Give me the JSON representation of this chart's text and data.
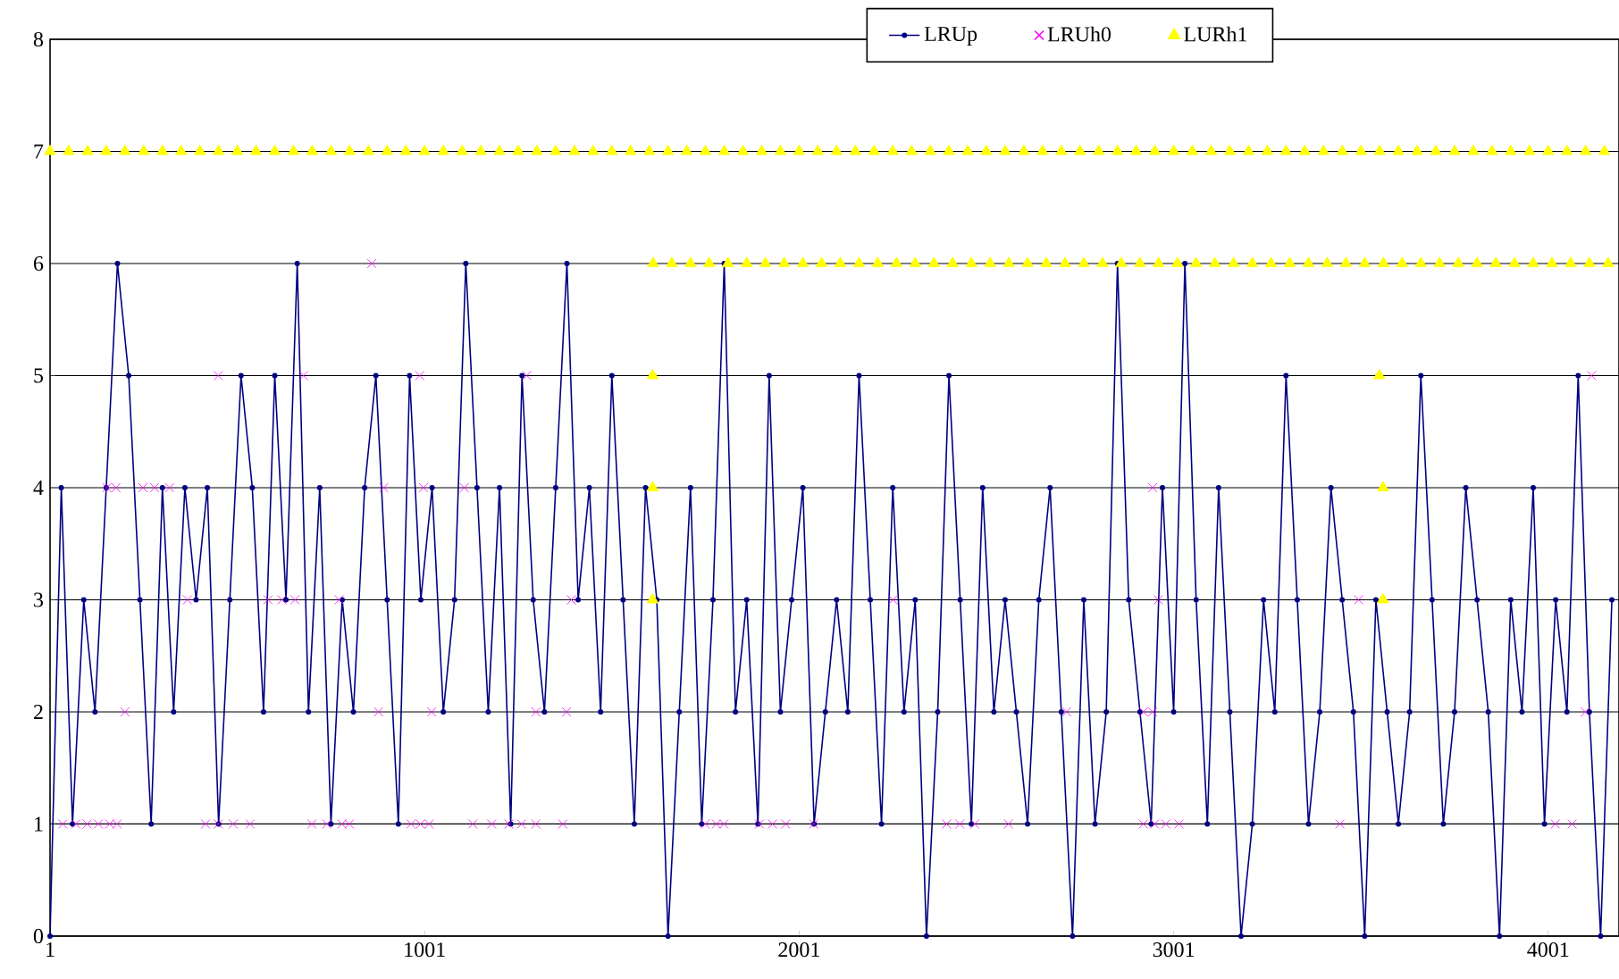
{
  "chart_data": {
    "type": "line",
    "xlim": [
      1,
      4190
    ],
    "xticks": [
      1,
      1001,
      2001,
      3001,
      4001
    ],
    "ylim": [
      0,
      8
    ],
    "yticks": [
      0,
      1,
      2,
      3,
      4,
      5,
      6,
      7,
      8
    ],
    "grid": "y",
    "legend": "top",
    "line_style": "solid",
    "series": [
      {
        "name": "LRUp",
        "color": "#000080",
        "marker": "circle",
        "x": [
          1,
          31,
          61,
          91,
          121,
          151,
          181,
          211,
          241,
          271,
          301,
          331,
          361,
          391,
          421,
          451,
          481,
          511,
          541,
          571,
          601,
          631,
          661,
          691,
          721,
          751,
          781,
          811,
          841,
          871,
          901,
          931,
          961,
          991,
          1021,
          1051,
          1081,
          1111,
          1141,
          1171,
          1201,
          1231,
          1261,
          1291,
          1321,
          1351,
          1381,
          1411,
          1441,
          1471,
          1501,
          1531,
          1561,
          1591,
          1621,
          1651,
          1681,
          1711,
          1741,
          1771,
          1801,
          1831,
          1861,
          1891,
          1921,
          1951,
          1981,
          2011,
          2041,
          2071,
          2101,
          2131,
          2161,
          2191,
          2221,
          2251,
          2281,
          2311,
          2341,
          2371,
          2401,
          2431,
          2461,
          2491,
          2521,
          2551,
          2581,
          2611,
          2641,
          2671,
          2701,
          2731,
          2761,
          2791,
          2821,
          2851,
          2881,
          2911,
          2941,
          2971,
          3001,
          3031,
          3061,
          3091,
          3121,
          3151,
          3181,
          3211,
          3241,
          3271,
          3301,
          3331,
          3361,
          3391,
          3421,
          3451,
          3481,
          3511,
          3541,
          3571,
          3601,
          3631,
          3661,
          3691,
          3721,
          3751,
          3781,
          3811,
          3841,
          3871,
          3901,
          3931,
          3961,
          3991,
          4021,
          4051,
          4081,
          4111,
          4141,
          4171
        ],
        "values": [
          0,
          4,
          1,
          3,
          2,
          4,
          6,
          5,
          3,
          1,
          4,
          2,
          4,
          3,
          4,
          1,
          3,
          5,
          4,
          2,
          5,
          3,
          6,
          2,
          4,
          1,
          3,
          2,
          4,
          5,
          3,
          1,
          5,
          3,
          4,
          2,
          3,
          6,
          4,
          2,
          4,
          1,
          5,
          3,
          2,
          4,
          6,
          3,
          4,
          2,
          5,
          3,
          1,
          4,
          3,
          0,
          2,
          4,
          1,
          3,
          6,
          2,
          3,
          1,
          5,
          2,
          3,
          4,
          1,
          2,
          3,
          2,
          5,
          3,
          1,
          4,
          2,
          3,
          0,
          2,
          5,
          3,
          1,
          4,
          2,
          3,
          2,
          1,
          3,
          4,
          2,
          0,
          3,
          1,
          2,
          6,
          3,
          2,
          1,
          4,
          2,
          6,
          3,
          1,
          4,
          2,
          0,
          1,
          3,
          2,
          5,
          3,
          1,
          2,
          4,
          3,
          2,
          0,
          3,
          2,
          1,
          2,
          5,
          3,
          1,
          2,
          4,
          3,
          2,
          0,
          3,
          2,
          4,
          1,
          3,
          2,
          5,
          2,
          0,
          3
        ]
      },
      {
        "name": "LRUh0",
        "type": "scatter",
        "color": "#ff00ff",
        "marker": "cross",
        "x": [
          35,
          70,
          100,
          130,
          160,
          180,
          416,
          450,
          490,
          535,
          700,
          740,
          780,
          800,
          965,
          990,
          1013,
          1130,
          1180,
          1226,
          1260,
          1298,
          1370,
          1750,
          1780,
          1800,
          1895,
          1930,
          1965,
          2040,
          2395,
          2430,
          2470,
          2560,
          2920,
          2950,
          2980,
          3015,
          3445,
          4020,
          4065,
          201,
          878,
          1020,
          1298,
          1380,
          2715,
          2920,
          2945,
          4100,
          368,
          583,
          620,
          655,
          773,
          1393,
          2252,
          2960,
          3495,
          153,
          177,
          249,
          280,
          320,
          892,
          998,
          1107,
          2945,
          450,
          678,
          988,
          1274,
          4117,
          860
        ],
        "values": [
          1,
          1,
          1,
          1,
          1,
          1,
          1,
          1,
          1,
          1,
          1,
          1,
          1,
          1,
          1,
          1,
          1,
          1,
          1,
          1,
          1,
          1,
          1,
          1,
          1,
          1,
          1,
          1,
          1,
          1,
          1,
          1,
          1,
          1,
          1,
          1,
          1,
          1,
          1,
          1,
          1,
          2,
          2,
          2,
          2,
          2,
          2,
          2,
          2,
          2,
          3,
          3,
          3,
          3,
          3,
          3,
          3,
          3,
          3,
          4,
          4,
          4,
          4,
          4,
          4,
          4,
          4,
          4,
          5,
          5,
          5,
          5,
          5,
          6
        ]
      },
      {
        "name": "LURh1",
        "type": "scatter",
        "color": "#ffff00",
        "marker": "triangle",
        "x": [
          1,
          51,
          101,
          151,
          201,
          251,
          301,
          351,
          401,
          451,
          501,
          551,
          601,
          651,
          701,
          751,
          801,
          851,
          901,
          951,
          1001,
          1051,
          1101,
          1151,
          1201,
          1251,
          1301,
          1351,
          1401,
          1451,
          1501,
          1551,
          1601,
          1651,
          1701,
          1751,
          1801,
          1851,
          1901,
          1951,
          2001,
          2051,
          2101,
          2151,
          2201,
          2251,
          2301,
          2351,
          2401,
          2451,
          2501,
          2551,
          2601,
          2651,
          2701,
          2751,
          2801,
          2851,
          2901,
          2951,
          3001,
          3051,
          3101,
          3151,
          3201,
          3251,
          3301,
          3351,
          3401,
          3451,
          3501,
          3551,
          3601,
          3651,
          3701,
          3751,
          3801,
          3851,
          3901,
          3951,
          4001,
          4051,
          4101,
          4151,
          1611,
          1661,
          1711,
          1761,
          1811,
          1861,
          1911,
          1961,
          2011,
          2061,
          2111,
          2161,
          2211,
          2261,
          2311,
          2361,
          2411,
          2461,
          2511,
          2561,
          2611,
          2661,
          2711,
          2761,
          2811,
          2861,
          2911,
          2961,
          3011,
          3061,
          3111,
          3161,
          3211,
          3261,
          3311,
          3361,
          3411,
          3461,
          3511,
          3561,
          3611,
          3661,
          3711,
          3761,
          3811,
          3861,
          3911,
          3961,
          4011,
          4061,
          4111,
          4161,
          1610,
          1610,
          1610,
          3550,
          3560,
          3560
        ],
        "values": [
          7,
          7,
          7,
          7,
          7,
          7,
          7,
          7,
          7,
          7,
          7,
          7,
          7,
          7,
          7,
          7,
          7,
          7,
          7,
          7,
          7,
          7,
          7,
          7,
          7,
          7,
          7,
          7,
          7,
          7,
          7,
          7,
          7,
          7,
          7,
          7,
          7,
          7,
          7,
          7,
          7,
          7,
          7,
          7,
          7,
          7,
          7,
          7,
          7,
          7,
          7,
          7,
          7,
          7,
          7,
          7,
          7,
          7,
          7,
          7,
          7,
          7,
          7,
          7,
          7,
          7,
          7,
          7,
          7,
          7,
          7,
          7,
          7,
          7,
          7,
          7,
          7,
          7,
          7,
          7,
          7,
          7,
          7,
          7,
          6,
          6,
          6,
          6,
          6,
          6,
          6,
          6,
          6,
          6,
          6,
          6,
          6,
          6,
          6,
          6,
          6,
          6,
          6,
          6,
          6,
          6,
          6,
          6,
          6,
          6,
          6,
          6,
          6,
          6,
          6,
          6,
          6,
          6,
          6,
          6,
          6,
          6,
          6,
          6,
          6,
          6,
          6,
          6,
          6,
          6,
          6,
          6,
          6,
          6,
          6,
          6,
          5,
          4,
          3,
          5,
          4,
          3
        ]
      }
    ]
  }
}
